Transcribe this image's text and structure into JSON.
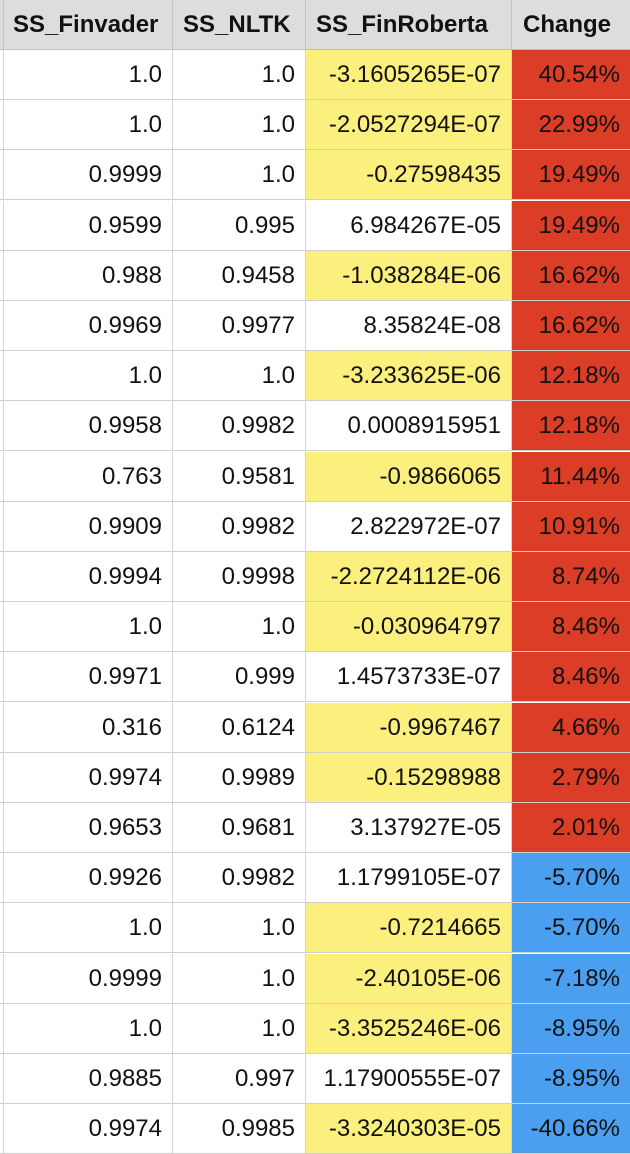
{
  "colors": {
    "header_bg": "#dddddd",
    "negative_sentiment": "#fbef7e",
    "positive_change": "#dc3d26",
    "negative_change": "#4b9ff0"
  },
  "columns": [
    "SS_Finvader",
    "SS_NLTK",
    "SS_FinRoberta",
    "Change"
  ],
  "rows": [
    {
      "finvader": "1.0",
      "nltk": "1.0",
      "finroberta": "-3.1605265E-07",
      "change": "40.54%",
      "fr_negative": true,
      "change_dir": "up"
    },
    {
      "finvader": "1.0",
      "nltk": "1.0",
      "finroberta": "-2.0527294E-07",
      "change": "22.99%",
      "fr_negative": true,
      "change_dir": "up"
    },
    {
      "finvader": "0.9999",
      "nltk": "1.0",
      "finroberta": "-0.27598435",
      "change": "19.49%",
      "fr_negative": true,
      "change_dir": "up"
    },
    {
      "finvader": "0.9599",
      "nltk": "0.995",
      "finroberta": "6.984267E-05",
      "change": "19.49%",
      "fr_negative": false,
      "change_dir": "up"
    },
    {
      "finvader": "0.988",
      "nltk": "0.9458",
      "finroberta": "-1.038284E-06",
      "change": "16.62%",
      "fr_negative": true,
      "change_dir": "up"
    },
    {
      "finvader": "0.9969",
      "nltk": "0.9977",
      "finroberta": "8.35824E-08",
      "change": "16.62%",
      "fr_negative": false,
      "change_dir": "up"
    },
    {
      "finvader": "1.0",
      "nltk": "1.0",
      "finroberta": "-3.233625E-06",
      "change": "12.18%",
      "fr_negative": true,
      "change_dir": "up"
    },
    {
      "finvader": "0.9958",
      "nltk": "0.9982",
      "finroberta": "0.0008915951",
      "change": "12.18%",
      "fr_negative": false,
      "change_dir": "up"
    },
    {
      "finvader": "0.763",
      "nltk": "0.9581",
      "finroberta": "-0.9866065",
      "change": "11.44%",
      "fr_negative": true,
      "change_dir": "up"
    },
    {
      "finvader": "0.9909",
      "nltk": "0.9982",
      "finroberta": "2.822972E-07",
      "change": "10.91%",
      "fr_negative": false,
      "change_dir": "up"
    },
    {
      "finvader": "0.9994",
      "nltk": "0.9998",
      "finroberta": "-2.2724112E-06",
      "change": "8.74%",
      "fr_negative": true,
      "change_dir": "up"
    },
    {
      "finvader": "1.0",
      "nltk": "1.0",
      "finroberta": "-0.030964797",
      "change": "8.46%",
      "fr_negative": true,
      "change_dir": "up"
    },
    {
      "finvader": "0.9971",
      "nltk": "0.999",
      "finroberta": "1.4573733E-07",
      "change": "8.46%",
      "fr_negative": false,
      "change_dir": "up"
    },
    {
      "finvader": "0.316",
      "nltk": "0.6124",
      "finroberta": "-0.9967467",
      "change": "4.66%",
      "fr_negative": true,
      "change_dir": "up"
    },
    {
      "finvader": "0.9974",
      "nltk": "0.9989",
      "finroberta": "-0.15298988",
      "change": "2.79%",
      "fr_negative": true,
      "change_dir": "up"
    },
    {
      "finvader": "0.9653",
      "nltk": "0.9681",
      "finroberta": "3.137927E-05",
      "change": "2.01%",
      "fr_negative": false,
      "change_dir": "up"
    },
    {
      "finvader": "0.9926",
      "nltk": "0.9982",
      "finroberta": "1.1799105E-07",
      "change": "-5.70%",
      "fr_negative": false,
      "change_dir": "down"
    },
    {
      "finvader": "1.0",
      "nltk": "1.0",
      "finroberta": "-0.7214665",
      "change": "-5.70%",
      "fr_negative": true,
      "change_dir": "down"
    },
    {
      "finvader": "0.9999",
      "nltk": "1.0",
      "finroberta": "-2.40105E-06",
      "change": "-7.18%",
      "fr_negative": true,
      "change_dir": "down"
    },
    {
      "finvader": "1.0",
      "nltk": "1.0",
      "finroberta": "-3.3525246E-06",
      "change": "-8.95%",
      "fr_negative": true,
      "change_dir": "down"
    },
    {
      "finvader": "0.9885",
      "nltk": "0.997",
      "finroberta": "1.17900555E-07",
      "change": "-8.95%",
      "fr_negative": false,
      "change_dir": "down"
    },
    {
      "finvader": "0.9974",
      "nltk": "0.9985",
      "finroberta": "-3.3240303E-05",
      "change": "-40.66%",
      "fr_negative": true,
      "change_dir": "down"
    }
  ]
}
